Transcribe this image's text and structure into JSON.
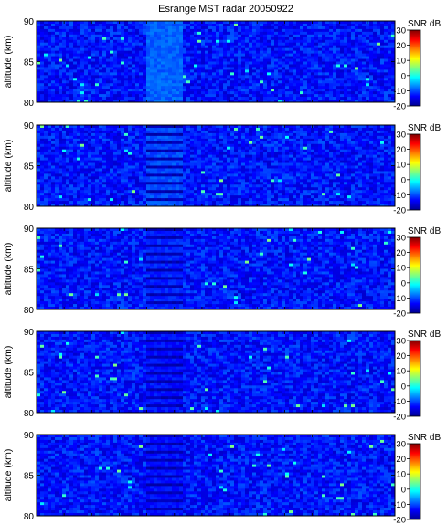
{
  "title": "Esrange MST radar 20050922",
  "colorscale": [
    "#00008f",
    "#0000ff",
    "#0080ff",
    "#00ffff",
    "#80ff80",
    "#ffff00",
    "#ff8000",
    "#ff0000",
    "#800000"
  ],
  "chart_data": [
    {
      "type": "heatmap",
      "title": "Esrange MST radar 20050922",
      "ylabel": "altitude (km)",
      "ylim": [
        80,
        90
      ],
      "yticks": [
        80,
        85,
        90
      ],
      "ytick_labels": [
        "80",
        "85",
        "90"
      ],
      "colorbar": {
        "label": "SNR dB",
        "range": [
          -20,
          30
        ],
        "ticks": [
          -20,
          -10,
          0,
          10,
          20,
          30
        ],
        "tick_labels": [
          "-20",
          "-10",
          "0",
          "10",
          "20",
          "30"
        ]
      },
      "typical_snr_db": -13,
      "enhanced_band": {
        "position": "center-left",
        "snr_db": -9,
        "striated": false
      }
    },
    {
      "type": "heatmap",
      "ylabel": "altitude (km)",
      "ylim": [
        80,
        90
      ],
      "yticks": [
        80,
        85,
        90
      ],
      "ytick_labels": [
        "80",
        "85",
        "90"
      ],
      "colorbar": {
        "label": "SNR dB",
        "range": [
          -20,
          30
        ],
        "ticks": [
          -20,
          -10,
          0,
          10,
          20,
          30
        ],
        "tick_labels": [
          "-20",
          "-10",
          "0",
          "10",
          "20",
          "30"
        ]
      },
      "typical_snr_db": -13,
      "enhanced_band": {
        "position": "center-left",
        "snr_db": -10,
        "striated": true
      }
    },
    {
      "type": "heatmap",
      "ylabel": "altitude (km)",
      "ylim": [
        80,
        90
      ],
      "yticks": [
        80,
        85,
        90
      ],
      "ytick_labels": [
        "80",
        "85",
        "90"
      ],
      "colorbar": {
        "label": "SNR dB",
        "range": [
          -20,
          30
        ],
        "ticks": [
          -20,
          -10,
          0,
          10,
          20,
          30
        ],
        "tick_labels": [
          "-20",
          "-10",
          "0",
          "10",
          "20",
          "30"
        ]
      },
      "typical_snr_db": -13,
      "enhanced_band": {
        "position": "center-left",
        "snr_db": -12,
        "striated": true
      }
    },
    {
      "type": "heatmap",
      "ylabel": "altitude (km)",
      "ylim": [
        80,
        90
      ],
      "yticks": [
        80,
        85,
        90
      ],
      "ytick_labels": [
        "80",
        "85",
        "90"
      ],
      "colorbar": {
        "label": "SNR dB",
        "range": [
          -20,
          30
        ],
        "ticks": [
          -20,
          -10,
          0,
          10,
          20,
          30
        ],
        "tick_labels": [
          "-20",
          "-10",
          "0",
          "10",
          "20",
          "30"
        ]
      },
      "typical_snr_db": -13,
      "enhanced_band": {
        "position": "center-left",
        "snr_db": -13,
        "striated": true
      }
    },
    {
      "type": "heatmap",
      "ylabel": "altitude (km)",
      "ylim": [
        80,
        90
      ],
      "yticks": [
        80,
        85,
        90
      ],
      "ytick_labels": [
        "80",
        "85",
        "90"
      ],
      "colorbar": {
        "label": "SNR dB",
        "range": [
          -20,
          30
        ],
        "ticks": [
          -20,
          -10,
          0,
          10,
          20,
          30
        ],
        "tick_labels": [
          "-20",
          "-10",
          "0",
          "10",
          "20",
          "30"
        ]
      },
      "typical_snr_db": -13,
      "enhanced_band": {
        "position": "center-left",
        "snr_db": -13,
        "striated": true
      }
    }
  ]
}
